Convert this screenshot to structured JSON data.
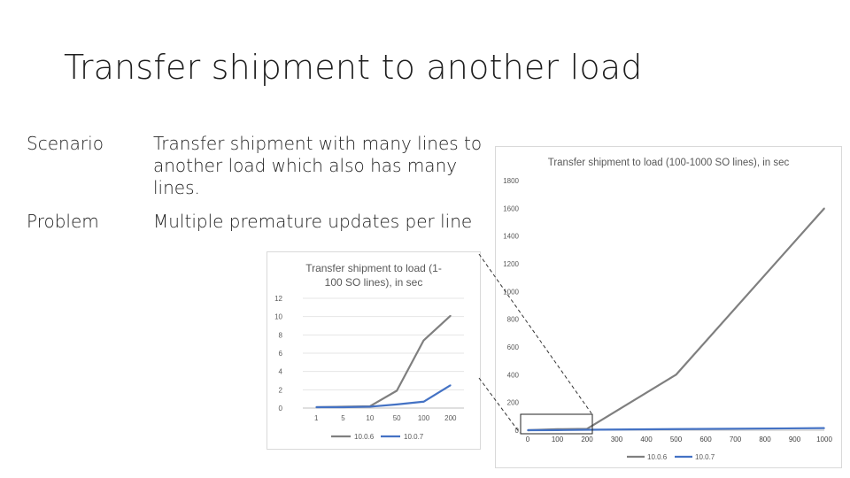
{
  "slide": {
    "title": "Transfer shipment to another load",
    "rows": [
      {
        "label": "Scenario",
        "text": "Transfer shipment with many lines to another load which also has many lines."
      },
      {
        "label": "Problem",
        "text": "Multiple premature updates per line"
      }
    ]
  },
  "colors": {
    "series_10_0_6": "#7f7f7f",
    "series_10_0_7": "#4472c4",
    "grid": "#e6e6e6",
    "axis_text": "#595959"
  },
  "chart_data": [
    {
      "type": "line",
      "title": "Transfer shipment to load (1-100 SO lines), in sec",
      "title_lines": [
        "Transfer shipment to load (1-",
        "100 SO lines), in sec"
      ],
      "categories": [
        "1",
        "5",
        "10",
        "50",
        "100",
        "200"
      ],
      "ylim": [
        0,
        12
      ],
      "yticks": [
        0,
        2,
        4,
        6,
        8,
        10,
        12
      ],
      "grid": true,
      "legend": "bottom",
      "series": [
        {
          "name": "10.0.6",
          "values": [
            0.1,
            0.15,
            0.2,
            1.9,
            7.4,
            10.1
          ]
        },
        {
          "name": "10.0.7",
          "values": [
            0.1,
            0.1,
            0.15,
            0.4,
            0.7,
            2.5
          ]
        }
      ]
    },
    {
      "type": "line",
      "title": "Transfer shipment to load (100-1000 SO lines), in sec",
      "x": [
        0,
        100,
        200,
        300,
        400,
        500,
        600,
        700,
        800,
        900,
        1000
      ],
      "xticks": [
        "0",
        "100",
        "200",
        "300",
        "400",
        "500",
        "600",
        "700",
        "800",
        "900",
        "1000"
      ],
      "ylim": [
        0,
        1800
      ],
      "yticks": [
        0,
        200,
        400,
        600,
        800,
        1000,
        1200,
        1400,
        1600,
        1800
      ],
      "grid": false,
      "legend": "bottom",
      "series": [
        {
          "name": "10.0.6",
          "points": [
            [
              0,
              0
            ],
            [
              100,
              7
            ],
            [
              200,
              10
            ],
            [
              500,
              400
            ],
            [
              1000,
              1600
            ]
          ]
        },
        {
          "name": "10.0.7",
          "points": [
            [
              0,
              0
            ],
            [
              100,
              1
            ],
            [
              200,
              3
            ],
            [
              500,
              8
            ],
            [
              1000,
              15
            ]
          ]
        }
      ]
    }
  ]
}
